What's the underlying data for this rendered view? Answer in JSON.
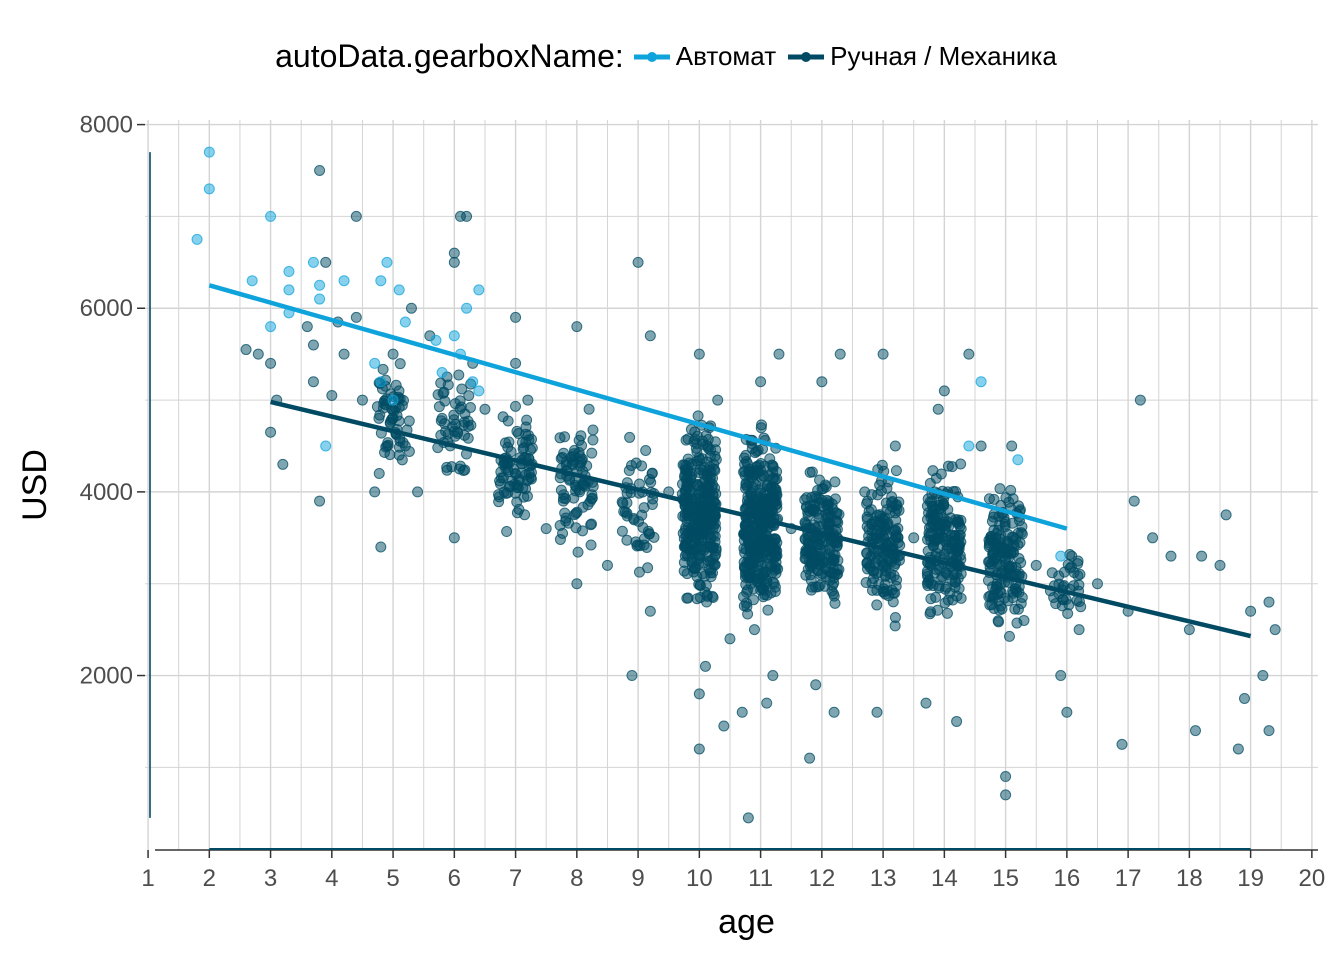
{
  "chart_data": {
    "type": "scatter",
    "title": "",
    "xlabel": "age",
    "ylabel": "USD",
    "legend": {
      "title": "autoData.gearboxName:",
      "position": "top"
    },
    "xlim": [
      0.95,
      20.1
    ],
    "ylim": [
      100,
      8050
    ],
    "x_ticks": [
      1,
      2,
      3,
      4,
      5,
      6,
      7,
      8,
      9,
      10,
      11,
      12,
      13,
      14,
      15,
      16,
      17,
      18,
      19,
      20
    ],
    "y_ticks": [
      2000,
      4000,
      6000,
      8000
    ],
    "grid": true,
    "series": [
      {
        "name": "Автомат",
        "color": "#0fa3dc",
        "points": [
          [
            1.8,
            6750
          ],
          [
            2,
            7700
          ],
          [
            2,
            7300
          ],
          [
            2.7,
            6300
          ],
          [
            3,
            7000
          ],
          [
            3,
            5800
          ],
          [
            3.3,
            6400
          ],
          [
            3.3,
            6200
          ],
          [
            3.3,
            5950
          ],
          [
            3.7,
            6500
          ],
          [
            3.8,
            6250
          ],
          [
            3.8,
            6100
          ],
          [
            3.9,
            4500
          ],
          [
            4.2,
            6300
          ],
          [
            4.7,
            5400
          ],
          [
            4.8,
            5200
          ],
          [
            4.8,
            6300
          ],
          [
            4.9,
            6500
          ],
          [
            5,
            5000
          ],
          [
            5.1,
            6200
          ],
          [
            5.2,
            5850
          ],
          [
            5.7,
            5650
          ],
          [
            5.8,
            5300
          ],
          [
            6,
            5700
          ],
          [
            6.1,
            5500
          ],
          [
            6.2,
            6000
          ],
          [
            6.3,
            5200
          ],
          [
            6.4,
            6200
          ],
          [
            6.4,
            5100
          ],
          [
            14.4,
            4500
          ],
          [
            14.6,
            5200
          ],
          [
            15.2,
            4350
          ],
          [
            15.9,
            3300
          ]
        ],
        "trend": [
          [
            2,
            6250
          ],
          [
            16,
            3600
          ]
        ]
      },
      {
        "name": "Ручная / Механика",
        "color": "#004b63",
        "points": [
          [
            2.6,
            5550
          ],
          [
            2.8,
            5500
          ],
          [
            3,
            5400
          ],
          [
            3,
            4650
          ],
          [
            3.1,
            5000
          ],
          [
            3.2,
            4300
          ],
          [
            3.6,
            5800
          ],
          [
            3.7,
            5600
          ],
          [
            3.7,
            5200
          ],
          [
            3.8,
            3900
          ],
          [
            3.8,
            7500
          ],
          [
            3.9,
            6500
          ],
          [
            4,
            5050
          ],
          [
            4.1,
            5850
          ],
          [
            4.2,
            5500
          ],
          [
            4.4,
            5900
          ],
          [
            4.4,
            7000
          ],
          [
            4.5,
            5000
          ],
          [
            4.7,
            4000
          ],
          [
            4.8,
            3400
          ],
          [
            4.9,
            4500
          ],
          [
            5,
            4800
          ],
          [
            5,
            5500
          ],
          [
            5.1,
            4400
          ],
          [
            5.2,
            4500
          ],
          [
            5.3,
            6000
          ],
          [
            5.4,
            4000
          ],
          [
            5.6,
            5700
          ],
          [
            5.8,
            4800
          ],
          [
            6,
            6600
          ],
          [
            6,
            6500
          ],
          [
            6,
            3500
          ],
          [
            6.1,
            7000
          ],
          [
            6.2,
            7000
          ],
          [
            6.3,
            5400
          ],
          [
            6.5,
            4900
          ],
          [
            7,
            5900
          ],
          [
            7,
            5400
          ],
          [
            7,
            4200
          ],
          [
            7.2,
            5000
          ],
          [
            7.5,
            3600
          ],
          [
            7.8,
            4600
          ],
          [
            8,
            5800
          ],
          [
            8,
            3000
          ],
          [
            8.2,
            4900
          ],
          [
            8.5,
            3200
          ],
          [
            8.9,
            2000
          ],
          [
            9,
            6500
          ],
          [
            9.2,
            5700
          ],
          [
            9.2,
            2700
          ],
          [
            9.5,
            4000
          ],
          [
            10,
            5500
          ],
          [
            10,
            1200
          ],
          [
            10,
            1800
          ],
          [
            10.1,
            2100
          ],
          [
            10.3,
            5000
          ],
          [
            10.4,
            1450
          ],
          [
            10.5,
            2400
          ],
          [
            10.7,
            1600
          ],
          [
            10.8,
            450
          ],
          [
            10.9,
            2500
          ],
          [
            11,
            5200
          ],
          [
            11.1,
            1700
          ],
          [
            11.2,
            2000
          ],
          [
            11.3,
            5500
          ],
          [
            11.5,
            3600
          ],
          [
            11.8,
            1100
          ],
          [
            11.9,
            1900
          ],
          [
            12,
            5200
          ],
          [
            12.2,
            1600
          ],
          [
            12.3,
            5500
          ],
          [
            12.7,
            4000
          ],
          [
            12.9,
            1600
          ],
          [
            13,
            5500
          ],
          [
            13.2,
            4500
          ],
          [
            13.5,
            3500
          ],
          [
            13.7,
            1700
          ],
          [
            13.9,
            4900
          ],
          [
            14,
            5100
          ],
          [
            14.2,
            1500
          ],
          [
            14.4,
            5500
          ],
          [
            14.6,
            4500
          ],
          [
            15,
            900
          ],
          [
            15,
            700
          ],
          [
            15.1,
            4500
          ],
          [
            15.3,
            2600
          ],
          [
            15.5,
            3200
          ],
          [
            15.9,
            2000
          ],
          [
            16,
            1600
          ],
          [
            16.2,
            2500
          ],
          [
            16.5,
            3000
          ],
          [
            16.9,
            1250
          ],
          [
            17,
            2700
          ],
          [
            17.1,
            3900
          ],
          [
            17.2,
            5000
          ],
          [
            17.4,
            3500
          ],
          [
            17.7,
            3300
          ],
          [
            18,
            2500
          ],
          [
            18.1,
            1400
          ],
          [
            18.2,
            3300
          ],
          [
            18.5,
            3200
          ],
          [
            18.6,
            3750
          ],
          [
            18.8,
            1200
          ],
          [
            18.9,
            1750
          ],
          [
            19,
            2700
          ],
          [
            19.2,
            2000
          ],
          [
            19.3,
            2800
          ],
          [
            19.3,
            1400
          ],
          [
            19.4,
            2500
          ]
        ],
        "dense_clusters": [
          {
            "x": 5,
            "y_low": 4000,
            "y_high": 5600,
            "n": 55
          },
          {
            "x": 6,
            "y_low": 4000,
            "y_high": 5500,
            "n": 50
          },
          {
            "x": 7,
            "y_low": 3400,
            "y_high": 5100,
            "n": 85
          },
          {
            "x": 8,
            "y_low": 3200,
            "y_high": 5000,
            "n": 80
          },
          {
            "x": 9,
            "y_low": 3000,
            "y_high": 4800,
            "n": 50
          },
          {
            "x": 10,
            "y_low": 2500,
            "y_high": 5000,
            "n": 320
          },
          {
            "x": 11,
            "y_low": 2300,
            "y_high": 4900,
            "n": 360
          },
          {
            "x": 12,
            "y_low": 2500,
            "y_high": 4500,
            "n": 190
          },
          {
            "x": 13,
            "y_low": 2400,
            "y_high": 4500,
            "n": 160
          },
          {
            "x": 14,
            "y_low": 2400,
            "y_high": 4500,
            "n": 190
          },
          {
            "x": 15,
            "y_low": 2300,
            "y_high": 4300,
            "n": 160
          },
          {
            "x": 16,
            "y_low": 2500,
            "y_high": 3600,
            "n": 35
          }
        ],
        "trend": [
          [
            3,
            4980
          ],
          [
            19,
            2430
          ]
        ]
      }
    ]
  }
}
